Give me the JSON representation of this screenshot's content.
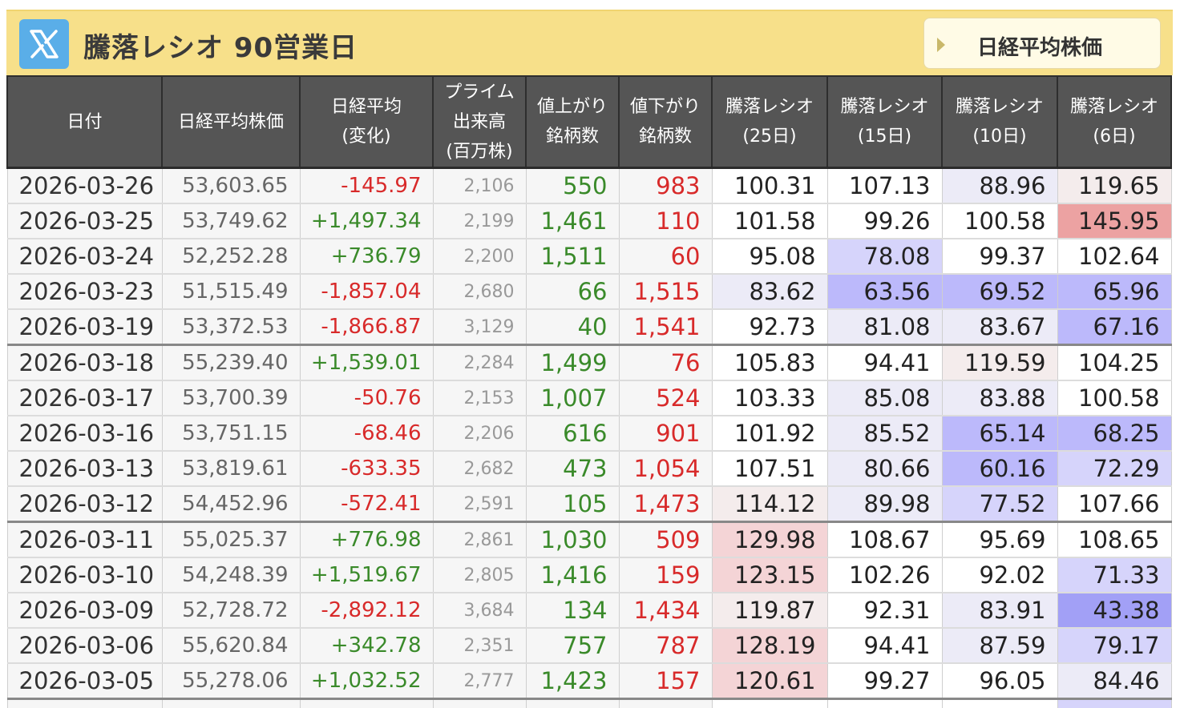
{
  "header": {
    "title": "騰落レシオ 90営業日",
    "nav_button_label": "日経平均株価",
    "x_icon": "x-logo-icon"
  },
  "table": {
    "columns": [
      [
        "日付"
      ],
      [
        "日経平均株価"
      ],
      [
        "日経平均",
        "(変化)"
      ],
      [
        "プライム",
        "出来高",
        "(百万株)"
      ],
      [
        "値上がり",
        "銘柄数"
      ],
      [
        "値下がり",
        "銘柄数"
      ],
      [
        "騰落レシオ",
        "(25日)"
      ],
      [
        "騰落レシオ",
        "(15日)"
      ],
      [
        "騰落レシオ",
        "(10日)"
      ],
      [
        "騰落レシオ",
        "(6日)"
      ]
    ],
    "rows": [
      {
        "date": "2026-03-26",
        "nikkei": "53,603.65",
        "change": "-145.97",
        "volume": "2,106",
        "adv": "550",
        "dec": "983",
        "r25": "100.31",
        "r15": "107.13",
        "r10": "88.96",
        "r6": "119.65"
      },
      {
        "date": "2026-03-25",
        "nikkei": "53,749.62",
        "change": "+1,497.34",
        "volume": "2,199",
        "adv": "1,461",
        "dec": "110",
        "r25": "101.58",
        "r15": "99.26",
        "r10": "100.58",
        "r6": "145.95"
      },
      {
        "date": "2026-03-24",
        "nikkei": "52,252.28",
        "change": "+736.79",
        "volume": "2,200",
        "adv": "1,511",
        "dec": "60",
        "r25": "95.08",
        "r15": "78.08",
        "r10": "99.37",
        "r6": "102.64"
      },
      {
        "date": "2026-03-23",
        "nikkei": "51,515.49",
        "change": "-1,857.04",
        "volume": "2,680",
        "adv": "66",
        "dec": "1,515",
        "r25": "83.62",
        "r15": "63.56",
        "r10": "69.52",
        "r6": "65.96"
      },
      {
        "date": "2026-03-19",
        "nikkei": "53,372.53",
        "change": "-1,866.87",
        "volume": "3,129",
        "adv": "40",
        "dec": "1,541",
        "r25": "92.73",
        "r15": "81.08",
        "r10": "83.67",
        "r6": "67.16"
      },
      {
        "date": "2026-03-18",
        "nikkei": "55,239.40",
        "change": "+1,539.01",
        "volume": "2,284",
        "adv": "1,499",
        "dec": "76",
        "r25": "105.83",
        "r15": "94.41",
        "r10": "119.59",
        "r6": "104.25"
      },
      {
        "date": "2026-03-17",
        "nikkei": "53,700.39",
        "change": "-50.76",
        "volume": "2,153",
        "adv": "1,007",
        "dec": "524",
        "r25": "103.33",
        "r15": "85.08",
        "r10": "83.88",
        "r6": "100.58"
      },
      {
        "date": "2026-03-16",
        "nikkei": "53,751.15",
        "change": "-68.46",
        "volume": "2,206",
        "adv": "616",
        "dec": "901",
        "r25": "101.92",
        "r15": "85.52",
        "r10": "65.14",
        "r6": "68.25"
      },
      {
        "date": "2026-03-13",
        "nikkei": "53,819.61",
        "change": "-633.35",
        "volume": "2,682",
        "adv": "473",
        "dec": "1,054",
        "r25": "107.51",
        "r15": "80.66",
        "r10": "60.16",
        "r6": "72.29"
      },
      {
        "date": "2026-03-12",
        "nikkei": "54,452.96",
        "change": "-572.41",
        "volume": "2,591",
        "adv": "105",
        "dec": "1,473",
        "r25": "114.12",
        "r15": "89.98",
        "r10": "77.52",
        "r6": "107.66"
      },
      {
        "date": "2026-03-11",
        "nikkei": "55,025.37",
        "change": "+776.98",
        "volume": "2,861",
        "adv": "1,030",
        "dec": "509",
        "r25": "129.98",
        "r15": "108.67",
        "r10": "95.69",
        "r6": "108.65"
      },
      {
        "date": "2026-03-10",
        "nikkei": "54,248.39",
        "change": "+1,519.67",
        "volume": "2,805",
        "adv": "1,416",
        "dec": "159",
        "r25": "123.15",
        "r15": "102.26",
        "r10": "92.02",
        "r6": "71.33"
      },
      {
        "date": "2026-03-09",
        "nikkei": "52,728.72",
        "change": "-2,892.12",
        "volume": "3,684",
        "adv": "134",
        "dec": "1,434",
        "r25": "119.87",
        "r15": "92.31",
        "r10": "83.91",
        "r6": "43.38"
      },
      {
        "date": "2026-03-06",
        "nikkei": "55,620.84",
        "change": "+342.78",
        "volume": "2,351",
        "adv": "757",
        "dec": "787",
        "r25": "128.19",
        "r15": "94.41",
        "r10": "87.59",
        "r6": "79.17"
      },
      {
        "date": "2026-03-05",
        "nikkei": "55,278.06",
        "change": "+1,032.52",
        "volume": "2,777",
        "adv": "1,423",
        "dec": "157",
        "r25": "120.61",
        "r15": "99.27",
        "r10": "96.05",
        "r6": "84.46"
      }
    ]
  },
  "colors": {
    "header_bg": "#f7e08a",
    "table_header_bg": "#555555",
    "up_green": "#3a8a2a",
    "down_red": "#d82a2a"
  }
}
